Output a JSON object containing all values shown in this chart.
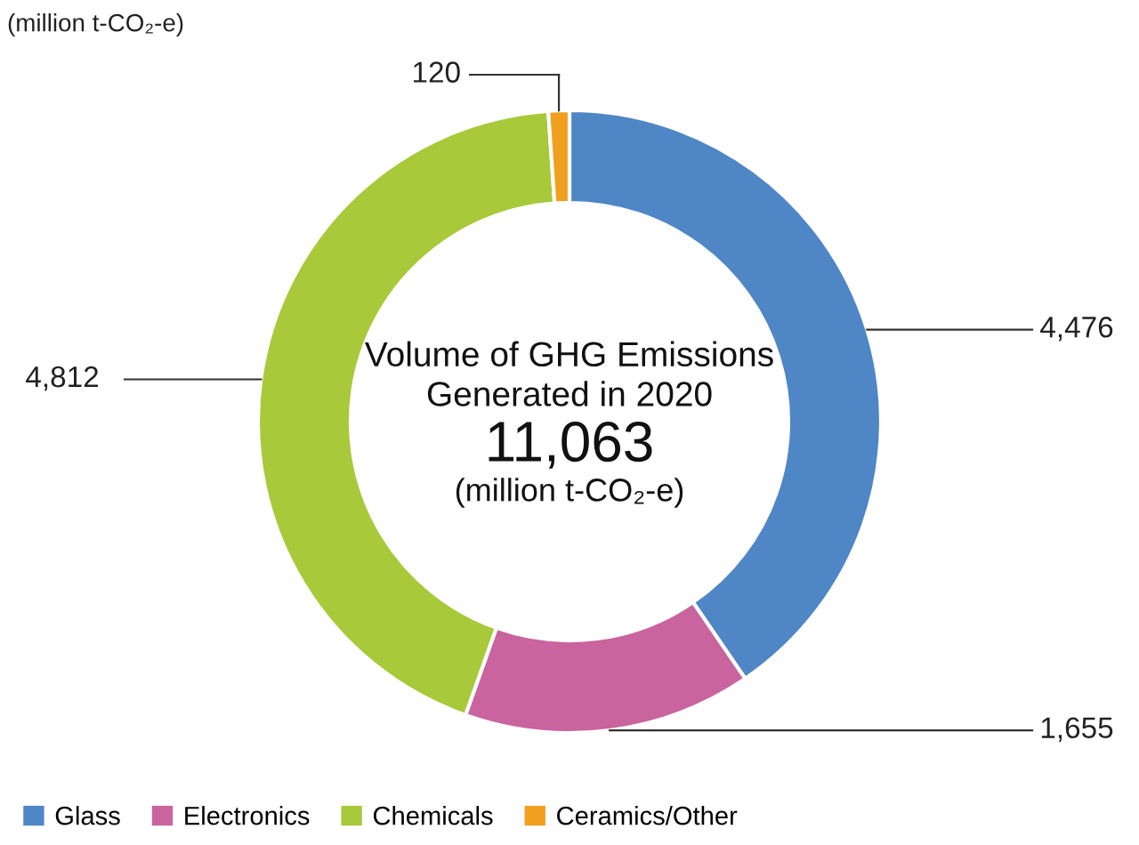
{
  "chart_data": {
    "type": "donut",
    "title": "Volume of GHG Emissions\nGenerated in 2020",
    "subtitle": "11,063",
    "categories": [
      "Glass",
      "Electronics",
      "Chemicals",
      "Ceramics/Other"
    ],
    "values": [
      4476,
      1655,
      4812,
      120
    ],
    "colors": [
      "#4f86c6",
      "#c9649e",
      "#a8c93a",
      "#f0a01e"
    ],
    "value_labels": [
      "4,476",
      "1,655",
      "4,812",
      "120"
    ],
    "legend": "bottom left",
    "annotations": [
      "(million t-CO₂-e)",
      "(million t-CO₂-e)"
    ]
  }
}
